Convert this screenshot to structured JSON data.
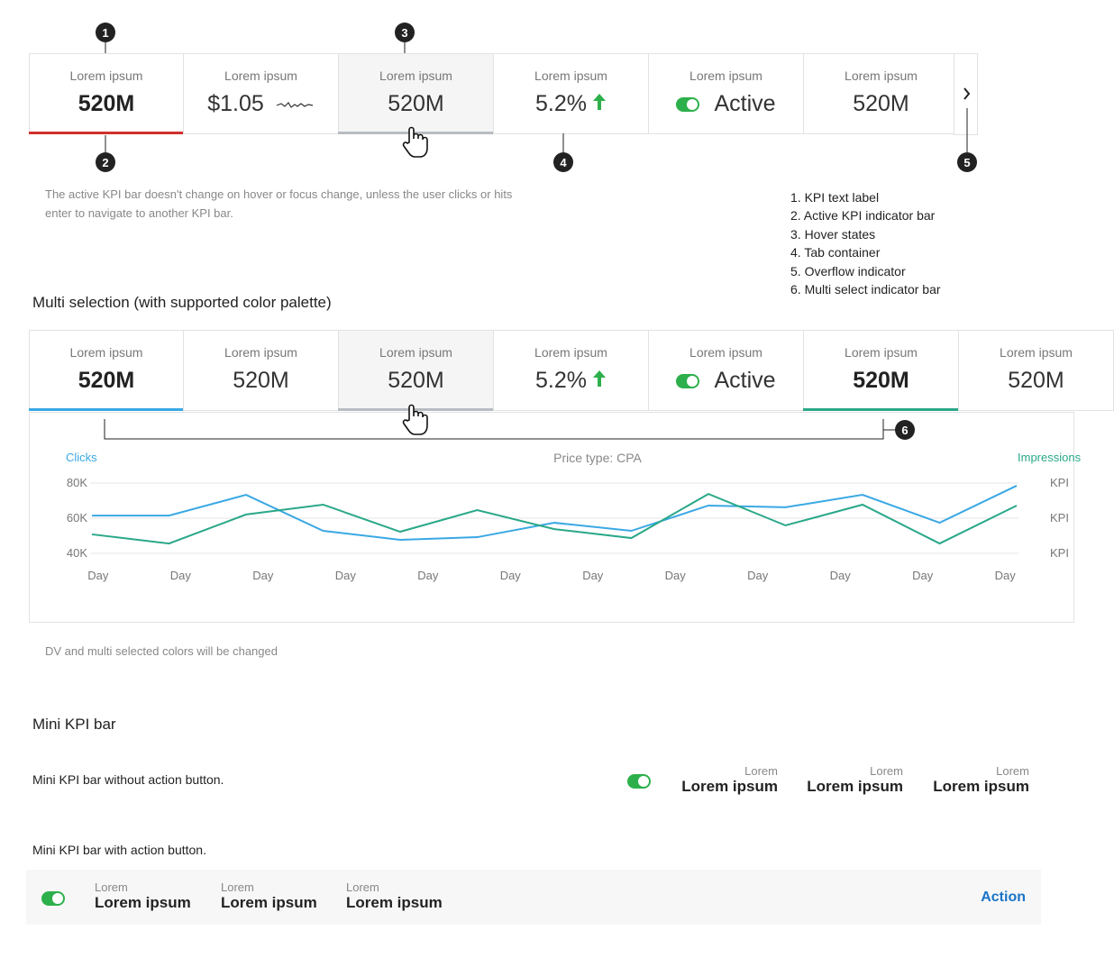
{
  "kpi_bar": {
    "tabs": [
      {
        "label": "Lorem ipsum",
        "value": "520M"
      },
      {
        "label": "Lorem ipsum",
        "value": "$1.05"
      },
      {
        "label": "Lorem ipsum",
        "value": "520M"
      },
      {
        "label": "Lorem ipsum",
        "value": "5.2%"
      },
      {
        "label": "Lorem ipsum",
        "value": "Active"
      },
      {
        "label": "Lorem ipsum",
        "value": "520M"
      }
    ],
    "callouts": [
      "1",
      "2",
      "3",
      "4",
      "5"
    ],
    "note": "The active KPI bar doesn't change on hover or focus change, unless the user clicks or hits enter to navigate to another KPI bar.",
    "legend": [
      "1. KPI text label",
      "2. Active KPI indicator bar",
      "3. Hover states",
      "4. Tab container",
      "5. Overflow indicator",
      "6. Multi select indicator bar"
    ]
  },
  "multi_selection": {
    "title": "Multi selection (with supported color palette)",
    "tabs": [
      {
        "label": "Lorem ipsum",
        "value": "520M"
      },
      {
        "label": "Lorem ipsum",
        "value": "520M"
      },
      {
        "label": "Lorem ipsum",
        "value": "520M"
      },
      {
        "label": "Lorem ipsum",
        "value": "5.2%"
      },
      {
        "label": "Lorem ipsum",
        "value": "Active"
      },
      {
        "label": "Lorem ipsum",
        "value": "520M"
      },
      {
        "label": "Lorem ipsum",
        "value": "520M"
      }
    ],
    "callout": "6",
    "note": "DV and multi selected colors will be changed"
  },
  "chart_data": {
    "type": "line",
    "subtitle": "Price type: CPA",
    "ylabel": "Clicks",
    "y2label": "Impressions",
    "x": [
      0,
      1,
      2,
      3,
      4,
      5,
      6,
      7,
      8,
      9,
      10,
      11,
      12
    ],
    "xlim": [
      0,
      12
    ],
    "xticks": [
      {
        "value": 0.08,
        "label": "Day"
      },
      {
        "value": 1.15,
        "label": "Day"
      },
      {
        "value": 2.22,
        "label": "Day"
      },
      {
        "value": 3.29,
        "label": "Day"
      },
      {
        "value": 4.36,
        "label": "Day"
      },
      {
        "value": 5.43,
        "label": "Day"
      },
      {
        "value": 6.5,
        "label": "Day"
      },
      {
        "value": 7.57,
        "label": "Day"
      },
      {
        "value": 8.64,
        "label": "Day"
      },
      {
        "value": 9.71,
        "label": "Day"
      },
      {
        "value": 10.78,
        "label": "Day"
      },
      {
        "value": 11.85,
        "label": "Day"
      }
    ],
    "ylim": [
      40000,
      80000
    ],
    "yticks": [
      {
        "value": 80000,
        "label": "80K"
      },
      {
        "value": 60000,
        "label": "60K"
      },
      {
        "value": 40000,
        "label": "40K"
      }
    ],
    "y2lim": [
      40000,
      80000
    ],
    "y2ticks": [
      {
        "value": 80000,
        "label": "KPI"
      },
      {
        "value": 60000,
        "label": "KPI"
      },
      {
        "value": 40000,
        "label": "KPI"
      }
    ],
    "grid": true,
    "series": [
      {
        "name": "Clicks",
        "color": "#3aa8e4",
        "values": [
          61500,
          61500,
          73300,
          52800,
          47700,
          49200,
          57400,
          52800,
          67200,
          66200,
          73300,
          57400,
          78500
        ]
      },
      {
        "name": "Impressions",
        "color": "#2aa889",
        "axis": "y2",
        "values": [
          50800,
          45600,
          62100,
          67700,
          52300,
          64600,
          53800,
          48700,
          73800,
          55900,
          67700,
          45600,
          67200
        ]
      }
    ]
  },
  "mini_kpi": {
    "title": "Mini KPI bar",
    "without": {
      "caption": "Mini KPI bar without action button.",
      "items": [
        {
          "label": "Lorem",
          "value": "Lorem ipsum"
        },
        {
          "label": "Lorem",
          "value": "Lorem ipsum"
        },
        {
          "label": "Lorem",
          "value": "Lorem ipsum"
        }
      ]
    },
    "with": {
      "caption": "Mini KPI bar with action button.",
      "items": [
        {
          "label": "Lorem",
          "value": "Lorem ipsum"
        },
        {
          "label": "Lorem",
          "value": "Lorem ipsum"
        },
        {
          "label": "Lorem",
          "value": "Lorem ipsum"
        }
      ],
      "action": "Action"
    }
  }
}
